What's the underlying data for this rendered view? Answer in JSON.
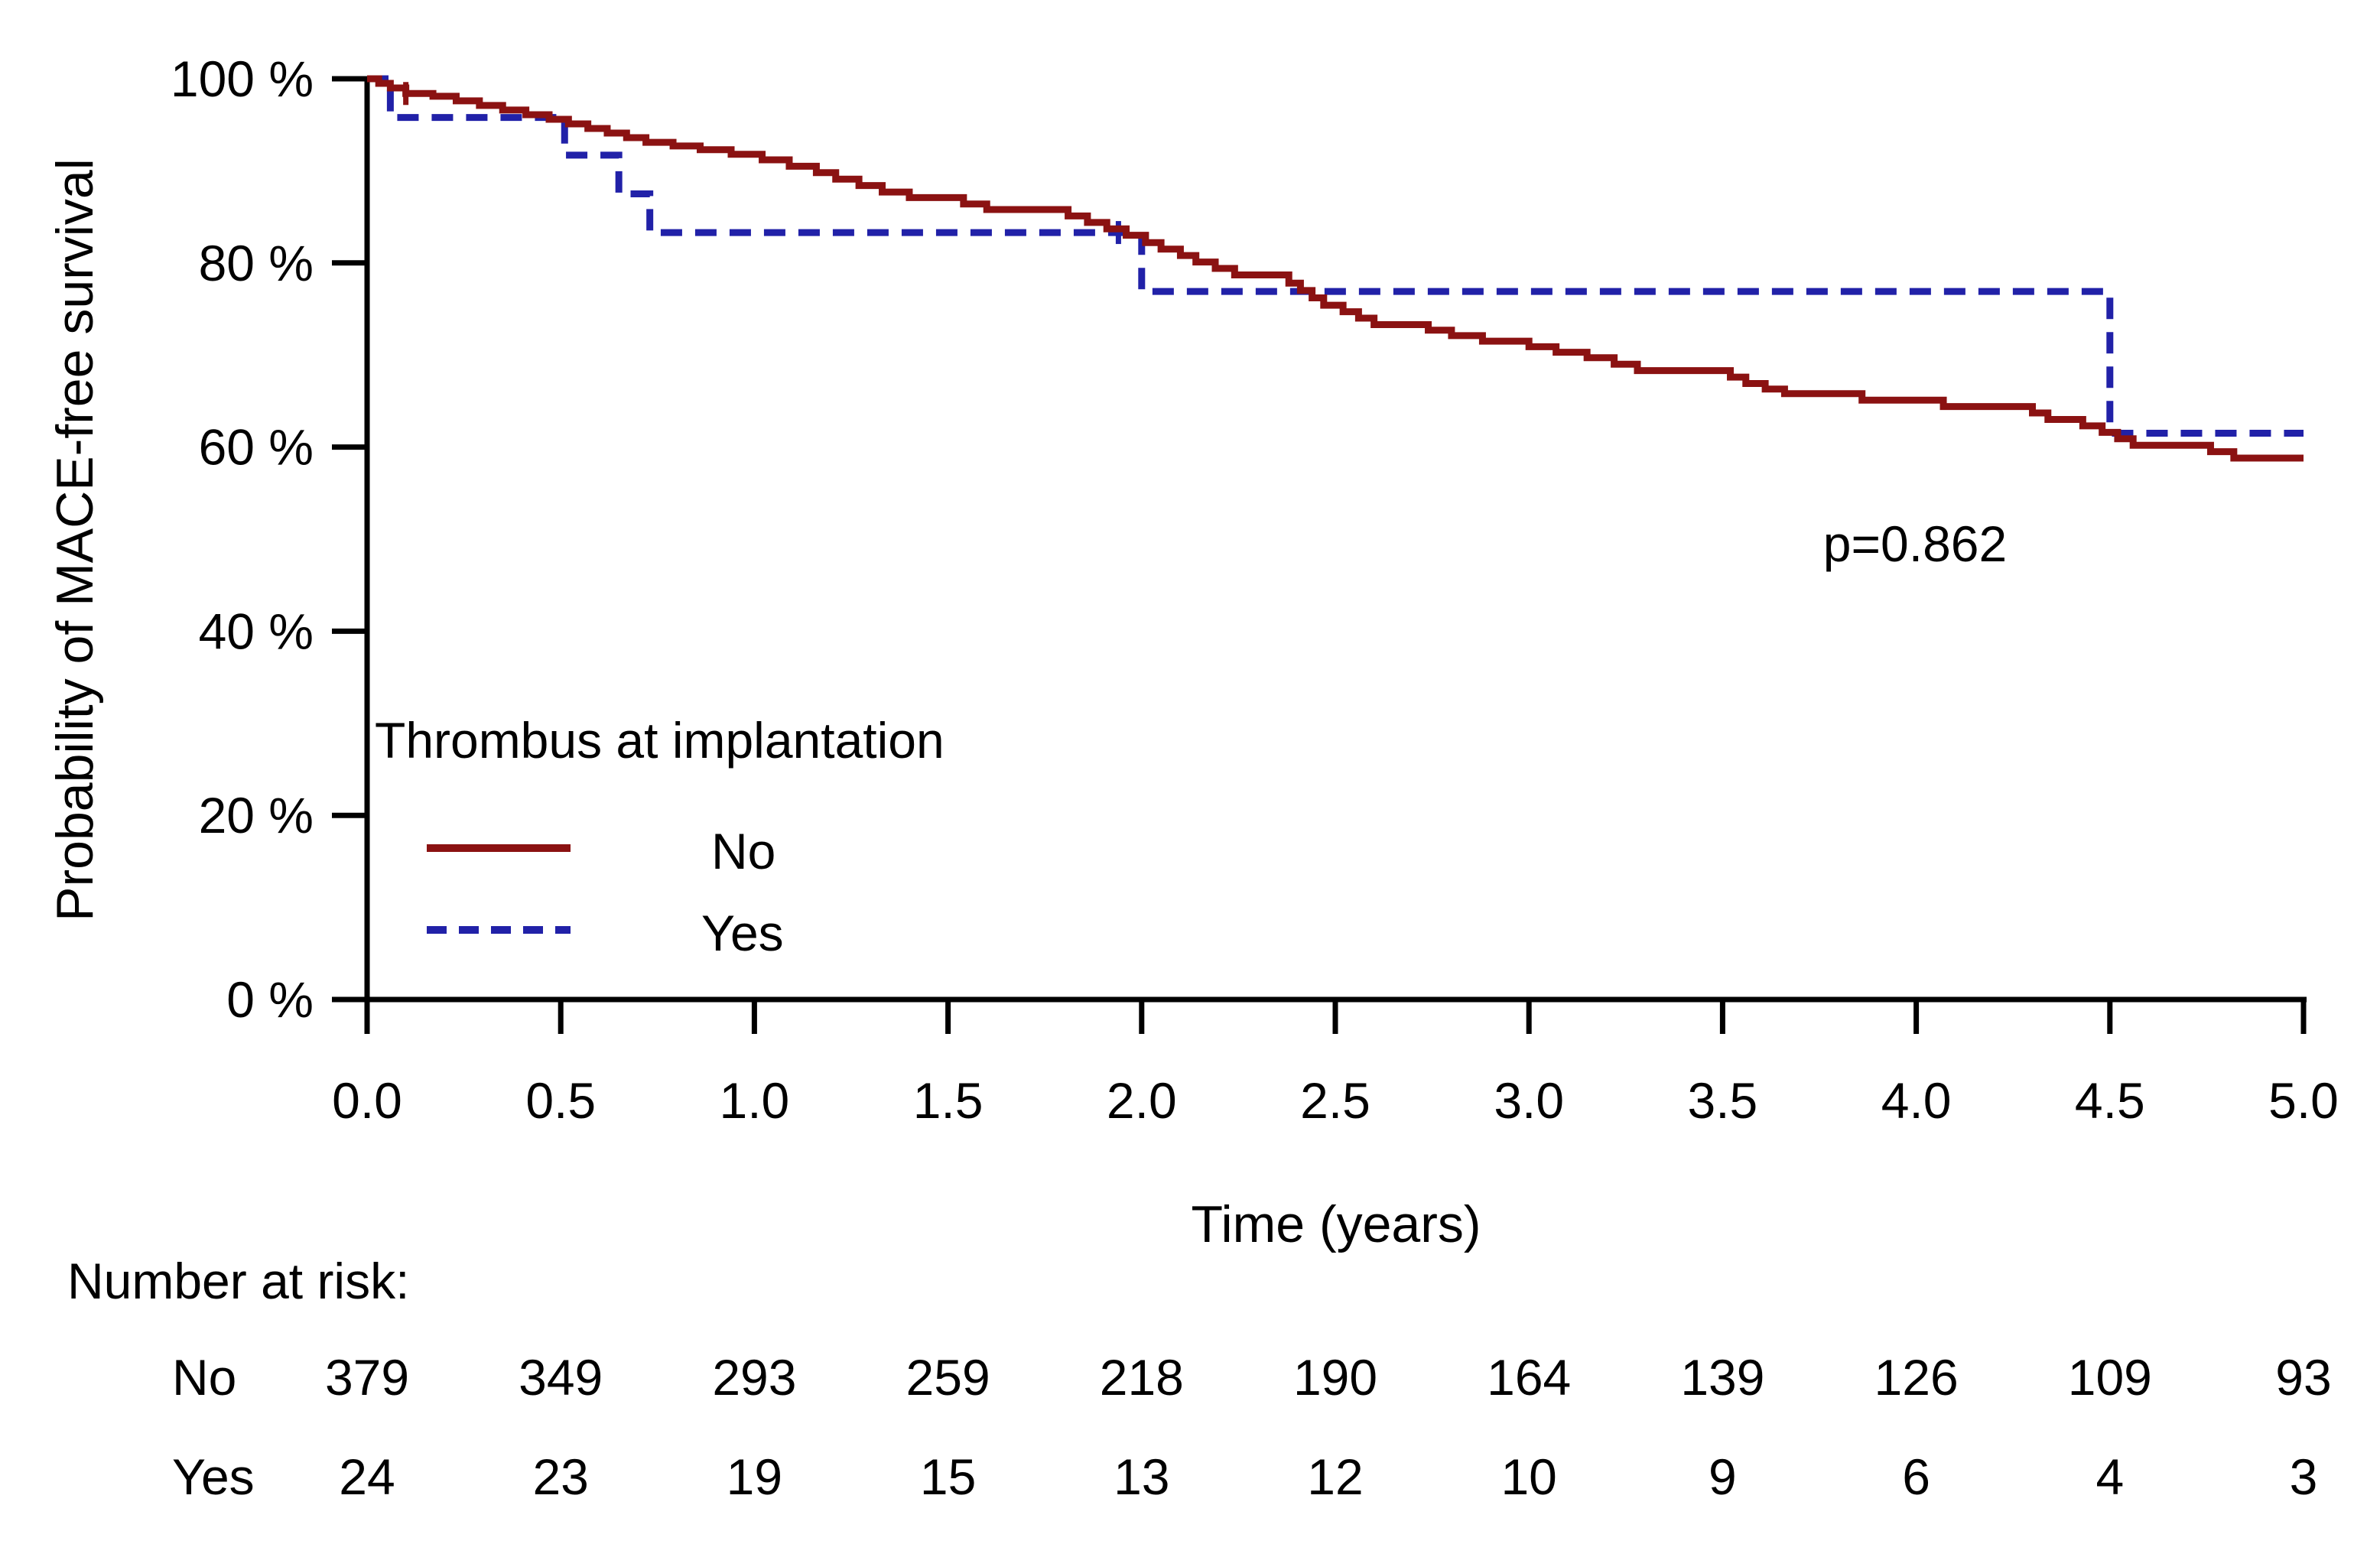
{
  "chart_data": {
    "type": "line",
    "subtype": "kaplan-meier-step",
    "title": "",
    "xlabel": "Time (years)",
    "ylabel": "Probability of MACE-free survival",
    "xlim": [
      0,
      5
    ],
    "ylim": [
      0,
      100
    ],
    "grid": false,
    "xtick_values": [
      0,
      0.5,
      1,
      1.5,
      2,
      2.5,
      3,
      3.5,
      4,
      4.5,
      5
    ],
    "xtick_labels": [
      "0.0",
      "0.5",
      "1.0",
      "1.5",
      "2.0",
      "2.5",
      "3.0",
      "3.5",
      "4.0",
      "4.5",
      "5.0"
    ],
    "ytick_values": [
      0,
      20,
      40,
      60,
      80,
      100
    ],
    "ytick_labels": [
      "0 %",
      "20 %",
      "40 %",
      "60 %",
      "80 %",
      "100 %"
    ],
    "annotation": {
      "text": "p=0.862"
    },
    "legend": {
      "title": "Thrombus at implantation",
      "position": "inside-lower-left",
      "entries": [
        {
          "label": "No",
          "color": "#8b1212",
          "dash": false
        },
        {
          "label": "Yes",
          "color": "#2121a8",
          "dash": true
        }
      ]
    },
    "series": [
      {
        "name": "No",
        "color": "#8b1212",
        "dash": false,
        "end_time": 5.0,
        "steps": [
          [
            0,
            100
          ],
          [
            0.03,
            99.5
          ],
          [
            0.06,
            99.0
          ],
          [
            0.1,
            98.4
          ],
          [
            0.17,
            98.1
          ],
          [
            0.23,
            97.6
          ],
          [
            0.29,
            97.1
          ],
          [
            0.35,
            96.6
          ],
          [
            0.41,
            96.1
          ],
          [
            0.47,
            95.6
          ],
          [
            0.52,
            95.1
          ],
          [
            0.57,
            94.6
          ],
          [
            0.62,
            94.1
          ],
          [
            0.67,
            93.6
          ],
          [
            0.72,
            93.1
          ],
          [
            0.79,
            92.7
          ],
          [
            0.86,
            92.3
          ],
          [
            0.94,
            91.8
          ],
          [
            1.02,
            91.2
          ],
          [
            1.09,
            90.5
          ],
          [
            1.16,
            89.8
          ],
          [
            1.21,
            89.1
          ],
          [
            1.27,
            88.4
          ],
          [
            1.33,
            87.7
          ],
          [
            1.4,
            87.1
          ],
          [
            1.54,
            86.4
          ],
          [
            1.6,
            85.8
          ],
          [
            1.81,
            85.1
          ],
          [
            1.86,
            84.4
          ],
          [
            1.91,
            83.7
          ],
          [
            1.96,
            83.0
          ],
          [
            2.01,
            82.2
          ],
          [
            2.05,
            81.5
          ],
          [
            2.1,
            80.8
          ],
          [
            2.14,
            80.1
          ],
          [
            2.19,
            79.4
          ],
          [
            2.24,
            78.7
          ],
          [
            2.38,
            77.8
          ],
          [
            2.41,
            77.0
          ],
          [
            2.44,
            76.2
          ],
          [
            2.47,
            75.4
          ],
          [
            2.52,
            74.7
          ],
          [
            2.56,
            74.0
          ],
          [
            2.6,
            73.3
          ],
          [
            2.74,
            72.7
          ],
          [
            2.8,
            72.1
          ],
          [
            2.88,
            71.5
          ],
          [
            3.0,
            70.9
          ],
          [
            3.07,
            70.3
          ],
          [
            3.15,
            69.7
          ],
          [
            3.22,
            69.0
          ],
          [
            3.28,
            68.3
          ],
          [
            3.52,
            67.6
          ],
          [
            3.56,
            66.9
          ],
          [
            3.61,
            66.3
          ],
          [
            3.66,
            65.8
          ],
          [
            3.86,
            65.1
          ],
          [
            4.07,
            64.4
          ],
          [
            4.3,
            63.7
          ],
          [
            4.34,
            63.0
          ],
          [
            4.43,
            62.3
          ],
          [
            4.48,
            61.6
          ],
          [
            4.52,
            60.9
          ],
          [
            4.56,
            60.2
          ],
          [
            4.76,
            59.5
          ],
          [
            4.82,
            58.8
          ]
        ],
        "censor_ticks": [
          [
            0.1,
            98.4
          ]
        ]
      },
      {
        "name": "Yes",
        "color": "#2121a8",
        "dash": true,
        "end_time": 5.0,
        "steps": [
          [
            0,
            100
          ],
          [
            0.06,
            95.8
          ],
          [
            0.51,
            91.7
          ],
          [
            0.65,
            87.5
          ],
          [
            0.73,
            83.3
          ],
          [
            2.0,
            76.9
          ],
          [
            4.5,
            61.5
          ]
        ],
        "censor_ticks": [
          [
            1.94,
            83.3
          ]
        ]
      }
    ]
  },
  "risk_table": {
    "header": "Number at risk:",
    "time_values": [
      0,
      0.5,
      1,
      1.5,
      2,
      2.5,
      3,
      3.5,
      4,
      4.5,
      5
    ],
    "rows": [
      {
        "label": "No",
        "counts": [
          "379",
          "349",
          "293",
          "259",
          "218",
          "190",
          "164",
          "139",
          "126",
          "109",
          "93"
        ]
      },
      {
        "label": "Yes",
        "counts": [
          "24",
          "23",
          "19",
          "15",
          "13",
          "12",
          "10",
          "9",
          "6",
          "4",
          "3"
        ]
      }
    ]
  }
}
